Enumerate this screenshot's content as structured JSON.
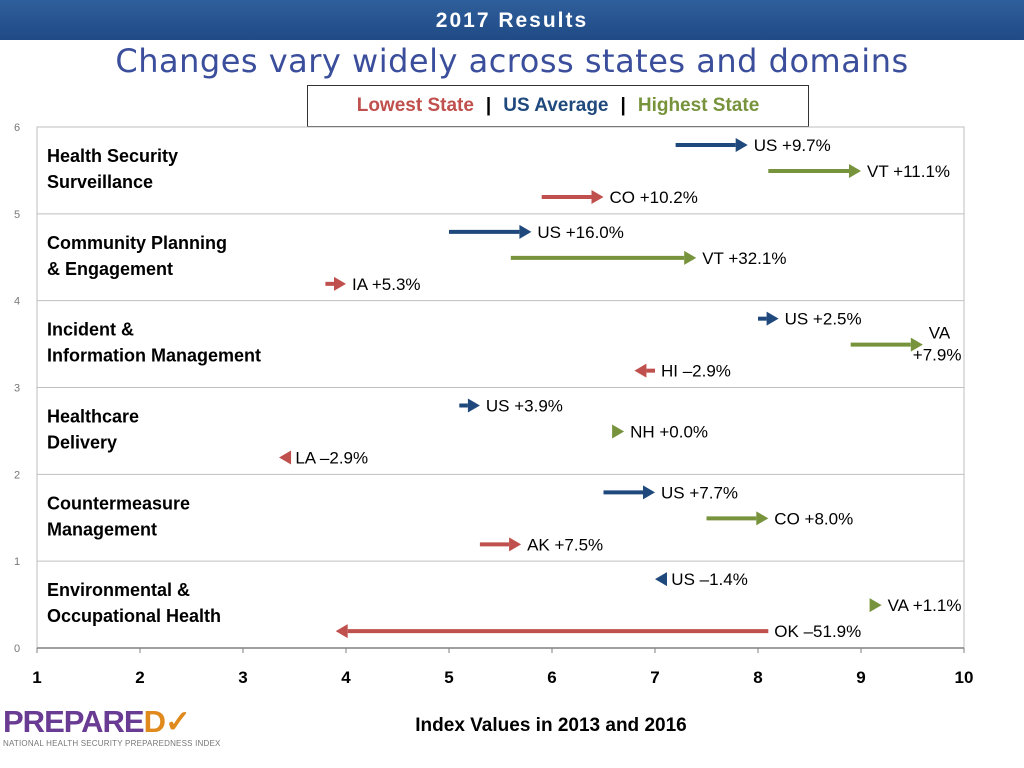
{
  "header": {
    "banner_title": "2017 Results",
    "subtitle": "Changes vary widely across states and domains"
  },
  "legend": {
    "lowest": "Lowest State",
    "us": "US Average",
    "highest": "Highest State",
    "separator": "|"
  },
  "colors": {
    "lowest": "#c0504d",
    "us": "#1f497d",
    "highest": "#77933c",
    "banner": "#1f4a85",
    "subtitle": "#3a4e9c",
    "logo_purple": "#6a3b93",
    "logo_orange": "#e08a1e"
  },
  "logo": {
    "word": "PREPARE",
    "icon": "check-shield-icon",
    "tagline": "NATIONAL HEALTH SECURITY PREPAREDNESS INDEX"
  },
  "chart_data": {
    "type": "arrow-range",
    "title": "Changes vary widely across states and domains",
    "xlabel": "Index Values in 2013 and 2016",
    "ylabel": "",
    "xlim": [
      1,
      10
    ],
    "ylim": [
      0,
      6
    ],
    "xticks": [
      "1",
      "2",
      "3",
      "4",
      "5",
      "6",
      "7",
      "8",
      "9",
      "10"
    ],
    "yticks": [
      "0",
      "1",
      "2",
      "3",
      "4",
      "5",
      "6"
    ],
    "grid": true,
    "domains": [
      {
        "name_lines": [
          "Health Security",
          "Surveillance"
        ],
        "arrows": [
          {
            "series": "us",
            "from": 7.2,
            "to": 7.9,
            "label_lines": [
              "US +9.7%"
            ]
          },
          {
            "series": "highest",
            "from": 8.1,
            "to": 9.0,
            "label_lines": [
              "VT +11.1%"
            ]
          },
          {
            "series": "lowest",
            "from": 5.9,
            "to": 6.5,
            "label_lines": [
              "CO +10.2%"
            ]
          }
        ]
      },
      {
        "name_lines": [
          "Community Planning",
          "& Engagement"
        ],
        "arrows": [
          {
            "series": "us",
            "from": 5.0,
            "to": 5.8,
            "label_lines": [
              "US +16.0%"
            ]
          },
          {
            "series": "highest",
            "from": 5.6,
            "to": 7.4,
            "label_lines": [
              "VT +32.1%"
            ]
          },
          {
            "series": "lowest",
            "from": 3.8,
            "to": 4.0,
            "label_lines": [
              "IA +5.3%"
            ]
          }
        ]
      },
      {
        "name_lines": [
          "Incident &",
          "Information Management"
        ],
        "arrows": [
          {
            "series": "us",
            "from": 8.0,
            "to": 8.2,
            "label_lines": [
              "US +2.5%"
            ]
          },
          {
            "series": "highest",
            "from": 8.9,
            "to": 9.6,
            "label_lines": [
              "VA",
              "+7.9%"
            ]
          },
          {
            "series": "lowest",
            "from": 7.0,
            "to": 6.8,
            "label_lines": [
              "HI –2.9%"
            ]
          }
        ]
      },
      {
        "name_lines": [
          "Healthcare",
          "Delivery"
        ],
        "arrows": [
          {
            "series": "us",
            "from": 5.1,
            "to": 5.3,
            "label_lines": [
              "US +3.9%"
            ]
          },
          {
            "series": "highest",
            "from": 6.7,
            "to": 6.7,
            "label_lines": [
              "NH +0.0%"
            ]
          },
          {
            "series": "lowest",
            "from": 3.45,
            "to": 3.35,
            "label_lines": [
              "LA –2.9%"
            ]
          }
        ]
      },
      {
        "name_lines": [
          "Countermeasure",
          "Management"
        ],
        "arrows": [
          {
            "series": "us",
            "from": 6.5,
            "to": 7.0,
            "label_lines": [
              "US +7.7%"
            ]
          },
          {
            "series": "highest",
            "from": 7.5,
            "to": 8.1,
            "label_lines": [
              "CO +8.0%"
            ]
          },
          {
            "series": "lowest",
            "from": 5.3,
            "to": 5.7,
            "label_lines": [
              "AK +7.5%"
            ]
          }
        ]
      },
      {
        "name_lines": [
          "Environmental &",
          "Occupational Health"
        ],
        "arrows": [
          {
            "series": "us",
            "from": 7.1,
            "to": 7.0,
            "label_lines": [
              "US –1.4%"
            ]
          },
          {
            "series": "highest",
            "from": 9.1,
            "to": 9.2,
            "label_lines": [
              "VA +1.1%"
            ]
          },
          {
            "series": "lowest",
            "from": 8.1,
            "to": 3.9,
            "label_lines": [
              "OK –51.9%"
            ]
          }
        ]
      }
    ]
  }
}
